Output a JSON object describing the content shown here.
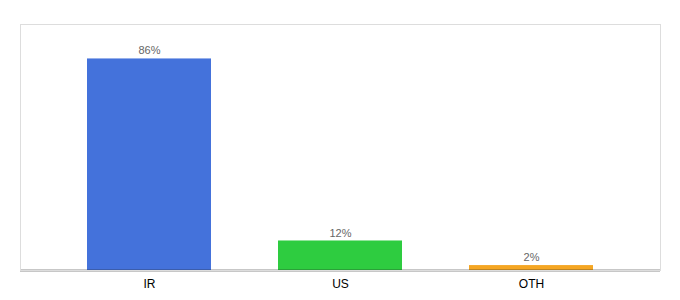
{
  "chart_data": {
    "type": "bar",
    "categories": [
      "IR",
      "US",
      "OTH"
    ],
    "values": [
      86,
      12,
      2
    ],
    "value_labels": [
      "86%",
      "12%",
      "2%"
    ],
    "colors": [
      "#4472db",
      "#2ecc40",
      "#f5a623"
    ],
    "ylim": [
      0,
      100
    ],
    "data_labels": true,
    "tick_labels": "x",
    "grid": false
  }
}
